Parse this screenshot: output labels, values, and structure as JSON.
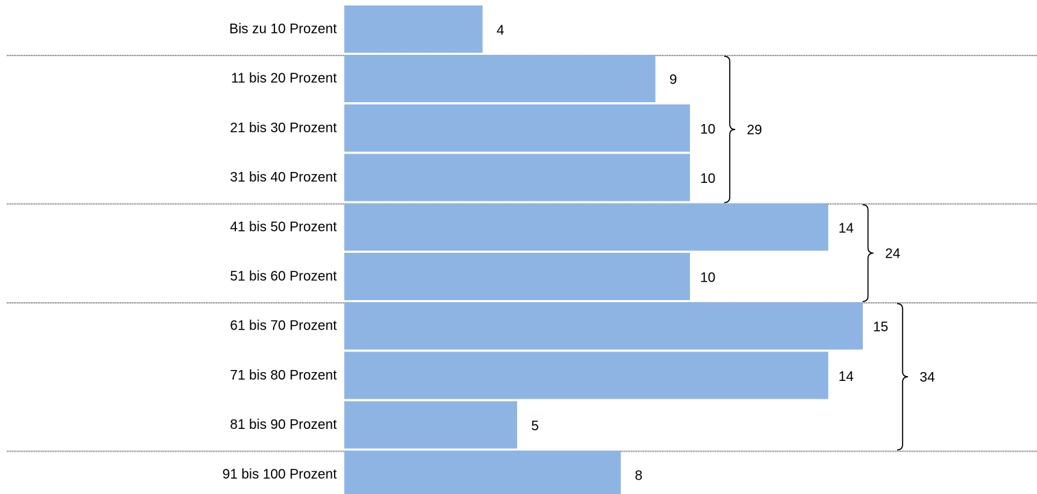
{
  "chart_data": {
    "type": "bar",
    "orientation": "horizontal",
    "categories": [
      "Bis zu 10 Prozent",
      "11 bis 20 Prozent",
      "21 bis 30 Prozent",
      "31 bis 40 Prozent",
      "41 bis 50 Prozent",
      "51 bis 60 Prozent",
      "61 bis 70 Prozent",
      "71 bis 80 Prozent",
      "81 bis 90 Prozent",
      "91 bis 100 Prozent"
    ],
    "values": [
      4,
      9,
      10,
      10,
      14,
      10,
      15,
      14,
      5,
      8
    ],
    "value_labels": [
      "4",
      "9",
      "10",
      "10",
      "14",
      "10",
      "15",
      "14",
      "5",
      "8"
    ],
    "groups": [
      {
        "start": 1,
        "end": 3,
        "total": 29,
        "label": "29"
      },
      {
        "start": 4,
        "end": 5,
        "total": 24,
        "label": "24"
      },
      {
        "start": 6,
        "end": 8,
        "total": 34,
        "label": "34"
      }
    ],
    "separators_after": [
      0,
      3,
      5,
      8
    ],
    "grid": false,
    "legend": "none",
    "bar_color": "#8EB4E3"
  }
}
